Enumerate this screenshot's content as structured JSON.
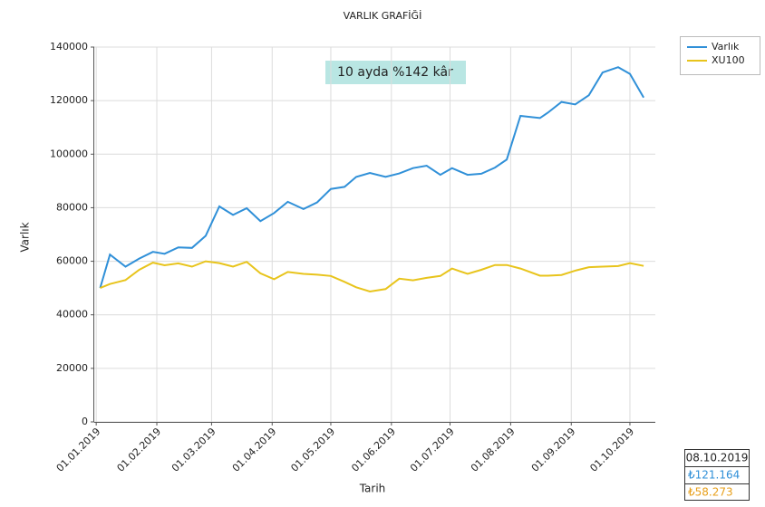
{
  "chart_data": {
    "type": "line",
    "title": "VARLIK GRAFİĞİ",
    "x_label": "Tarih",
    "y_label": "Varlık",
    "annotation": "10 ayda %142 kâr",
    "x": [
      "2019-01-03",
      "2019-01-08",
      "2019-01-16",
      "2019-01-23",
      "2019-01-30",
      "2019-02-05",
      "2019-02-12",
      "2019-02-19",
      "2019-02-26",
      "2019-03-05",
      "2019-03-12",
      "2019-03-19",
      "2019-03-26",
      "2019-04-02",
      "2019-04-09",
      "2019-04-17",
      "2019-04-24",
      "2019-05-01",
      "2019-05-08",
      "2019-05-14",
      "2019-05-21",
      "2019-05-29",
      "2019-06-05",
      "2019-06-12",
      "2019-06-19",
      "2019-06-26",
      "2019-07-02",
      "2019-07-10",
      "2019-07-17",
      "2019-07-24",
      "2019-07-30",
      "2019-08-06",
      "2019-08-16",
      "2019-08-20",
      "2019-08-27",
      "2019-09-03",
      "2019-09-10",
      "2019-09-17",
      "2019-09-25",
      "2019-10-01",
      "2019-10-08"
    ],
    "series": [
      {
        "name": "Varlık",
        "color": "#3090d8",
        "values": [
          50000,
          62500,
          58000,
          61000,
          63500,
          62800,
          65200,
          65000,
          69500,
          80500,
          77300,
          79800,
          75000,
          78000,
          82200,
          79500,
          82000,
          87000,
          87800,
          91500,
          93000,
          91500,
          92800,
          94800,
          95700,
          92300,
          94800,
          92300,
          92700,
          95000,
          98000,
          114300,
          113500,
          115500,
          119500,
          118600,
          122000,
          130500,
          132500,
          130000,
          121164
        ]
      },
      {
        "name": "XU100",
        "color": "#e8c41c",
        "values": [
          50000,
          51500,
          53000,
          56800,
          59500,
          58500,
          59200,
          58000,
          60000,
          59300,
          58000,
          59800,
          55500,
          53300,
          56000,
          55300,
          55000,
          54500,
          52300,
          50300,
          48700,
          49600,
          53500,
          52900,
          53800,
          54500,
          57300,
          55300,
          56800,
          58600,
          58600,
          57300,
          54600,
          54600,
          54900,
          56500,
          57800,
          58000,
          58200,
          59300,
          58273
        ]
      }
    ],
    "xlim": [
      "2018-12-31",
      "2019-10-14"
    ],
    "xticks": [
      {
        "value": "2019-01-01",
        "label": "01.01.2019"
      },
      {
        "value": "2019-02-01",
        "label": "01.02.2019"
      },
      {
        "value": "2019-03-01",
        "label": "01.03.2019"
      },
      {
        "value": "2019-04-01",
        "label": "01.04.2019"
      },
      {
        "value": "2019-05-01",
        "label": "01.05.2019"
      },
      {
        "value": "2019-06-01",
        "label": "01.06.2019"
      },
      {
        "value": "2019-07-01",
        "label": "01.07.2019"
      },
      {
        "value": "2019-08-01",
        "label": "01.08.2019"
      },
      {
        "value": "2019-09-01",
        "label": "01.09.2019"
      },
      {
        "value": "2019-10-01",
        "label": "01.10.2019"
      }
    ],
    "ylim": [
      0,
      140000
    ],
    "yticks": [
      0,
      20000,
      40000,
      60000,
      80000,
      100000,
      120000,
      140000
    ],
    "grid": true,
    "legend": "top-right",
    "readout": {
      "date": "08.10.2019",
      "values": [
        "₺121.164",
        "₺58.273"
      ]
    }
  }
}
